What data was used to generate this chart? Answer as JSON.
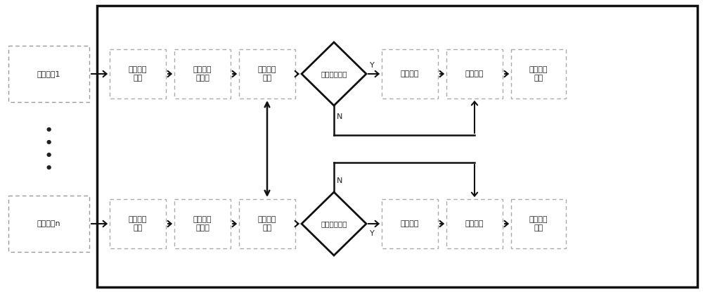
{
  "bg_color": "#ffffff",
  "box_edge_dashed": "#999999",
  "box_edge_solid": "#111111",
  "arrow_color": "#111111",
  "text_color": "#222222",
  "box1_top_label": "传统视颉1",
  "box1_bottom_label": "全景视频n",
  "label_feat": "目标特征\n提取",
  "label_state": "目标状态\n预估计",
  "label_polar": "求取对极\n曲线",
  "label_switch": "协同开关开启",
  "label_coweight": "协同权値",
  "label_update": "更新权値",
  "label_estimate": "估计目标\n状态",
  "label_Y": "Y",
  "label_N": "N"
}
